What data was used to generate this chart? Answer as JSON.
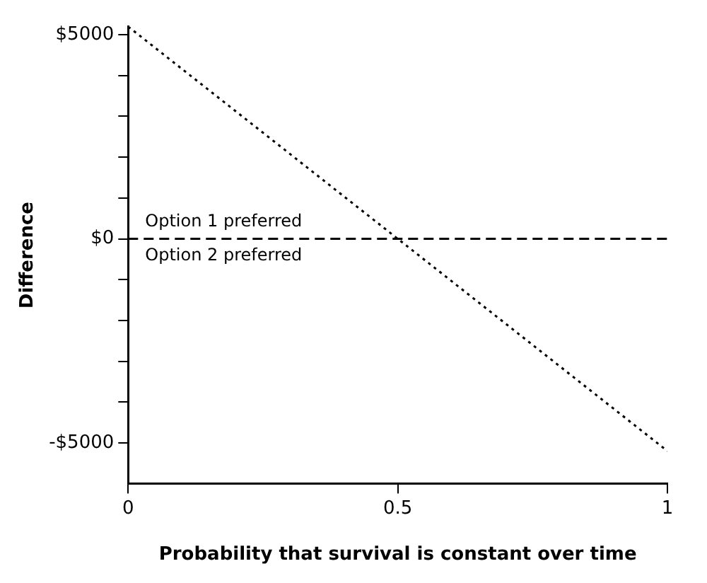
{
  "chart_data": {
    "type": "line",
    "xlabel": "Probability that survival is constant over time",
    "ylabel": "Difference",
    "xlim": [
      0,
      1
    ],
    "xticks": [
      0,
      0.5,
      1
    ],
    "ylim": [
      -6000,
      5200
    ],
    "yticks": [
      {
        "value": -5000,
        "label": "-$5000"
      },
      {
        "value": -4000,
        "label": null
      },
      {
        "value": -3000,
        "label": null
      },
      {
        "value": -2000,
        "label": null
      },
      {
        "value": -1000,
        "label": null
      },
      {
        "value": 0,
        "label": "$0"
      },
      {
        "value": 1000,
        "label": null
      },
      {
        "value": 2000,
        "label": null
      },
      {
        "value": 3000,
        "label": null
      },
      {
        "value": 4000,
        "label": null
      },
      {
        "value": 5000,
        "label": "$5000"
      }
    ],
    "series": [
      {
        "color": "#000000",
        "x": [
          0,
          1
        ],
        "values": [
          5200,
          -5200
        ],
        "line_style": "dotted",
        "marker": "none"
      }
    ],
    "ref_lines": [
      {
        "axis": "y",
        "value": 0,
        "color": "#000000",
        "line_style": "dashed"
      }
    ],
    "annotations": [
      "Option 1 preferred",
      "Option 2 preferred"
    ],
    "grid": false,
    "legend": false
  }
}
